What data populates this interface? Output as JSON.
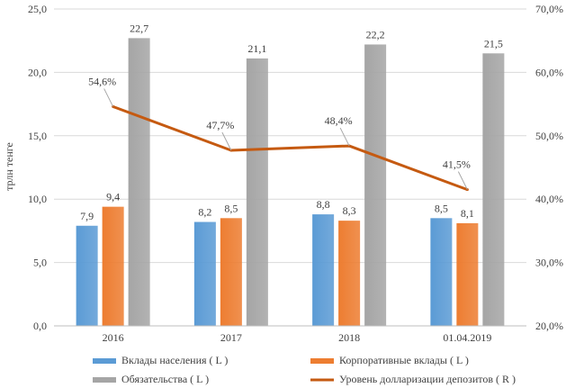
{
  "chart_data": {
    "type": "bar",
    "categories": [
      "2016",
      "2017",
      "2018",
      "01.04.2019"
    ],
    "series": [
      {
        "name": "Вклады населения ( L )",
        "axis": "left",
        "kind": "bar",
        "color": "#5b9bd5",
        "values": [
          7.9,
          8.2,
          8.8,
          8.5
        ],
        "labels": [
          "7,9",
          "8,2",
          "8,8",
          "8,5"
        ]
      },
      {
        "name": "Корпоративные вклады ( L )",
        "axis": "left",
        "kind": "bar",
        "color": "#ed7d31",
        "values": [
          9.4,
          8.5,
          8.3,
          8.1
        ],
        "labels": [
          "9,4",
          "8,5",
          "8,3",
          "8,1"
        ]
      },
      {
        "name": "Обязательства ( L )",
        "axis": "left",
        "kind": "bar",
        "color": "#a5a5a5",
        "values": [
          22.7,
          21.1,
          22.2,
          21.5
        ],
        "labels": [
          "22,7",
          "21,1",
          "22,2",
          "21,5"
        ]
      },
      {
        "name": "Уровень долларизации депозитов ( R )",
        "axis": "right",
        "kind": "line",
        "color": "#c55a11",
        "values": [
          54.6,
          47.7,
          48.4,
          41.5
        ],
        "labels": [
          "54,6%",
          "47,7%",
          "48,4%",
          "41,5%"
        ]
      }
    ],
    "ylabel": "трлн тенге",
    "ylim": [
      0,
      25
    ],
    "y_ticks": [
      "0,0",
      "5,0",
      "10,0",
      "15,0",
      "20,0",
      "25,0"
    ],
    "y2lim": [
      20,
      70
    ],
    "y2_ticks": [
      "20,0%",
      "30,0%",
      "40,0%",
      "50,0%",
      "60,0%",
      "70,0%"
    ],
    "grid": true,
    "legend_position": "bottom"
  }
}
